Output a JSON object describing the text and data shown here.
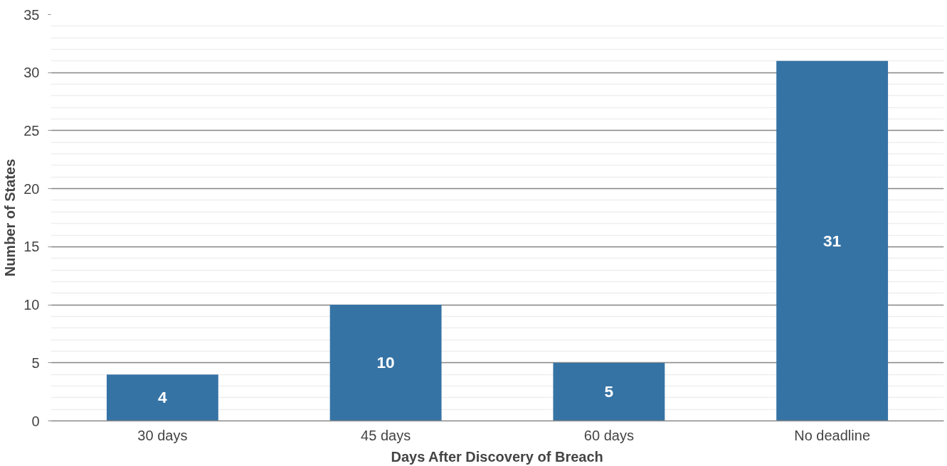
{
  "chart_data": {
    "type": "bar",
    "xlabel": "Days After Discovery of Breach",
    "ylabel": "Number of States",
    "categories": [
      "30 days",
      "45 days",
      "60 days",
      "No deadline"
    ],
    "values": [
      4,
      10,
      5,
      31
    ],
    "color": "#3673a5",
    "ylim": [
      0,
      35
    ],
    "yticks": [
      0,
      5,
      10,
      15,
      20,
      25,
      30,
      35
    ],
    "grid": "y",
    "data_labels": true
  }
}
